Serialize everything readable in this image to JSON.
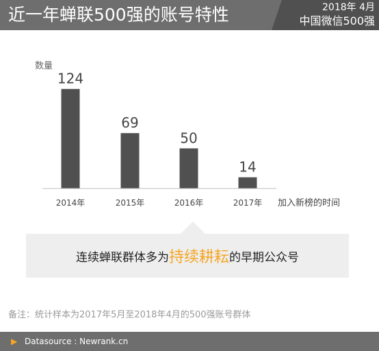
{
  "header": {
    "title": "近一年蝉联500强的账号特性",
    "date": "2018年  4月",
    "source": "中国微信500强"
  },
  "chart_data": {
    "type": "bar",
    "categories": [
      "2014年",
      "2015年",
      "2016年",
      "2017年"
    ],
    "values": [
      124,
      69,
      50,
      14
    ],
    "data_labels": [
      "124",
      "69",
      "50",
      "14"
    ],
    "title": "",
    "xlabel": "加入新榜的时间",
    "ylabel": "数量",
    "ylim": [
      0,
      140
    ],
    "grid": false,
    "legend": "none",
    "colors": {
      "bar": "#505050",
      "axis": "#bfbfbf"
    }
  },
  "callout": {
    "prefix": "连续蝉联群体多为",
    "highlight": "持续耕耘",
    "suffix": "的早期公众号"
  },
  "note": "备注：统计样本为2017年5月至2018年4月的500强账号群体",
  "footer": {
    "arrow_icon": "right-triangle-icon",
    "text": "Datasource : Newrank.cn"
  },
  "colors": {
    "accent": "#f5a623",
    "header_bg": "#6e6e6e",
    "header_dark": "#505050"
  }
}
